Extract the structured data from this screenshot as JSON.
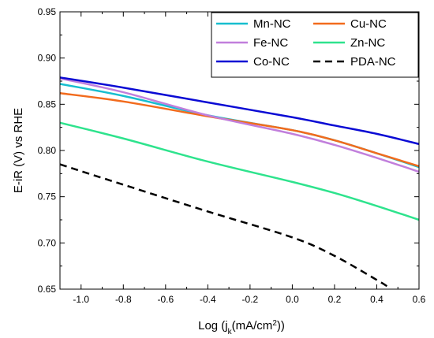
{
  "chart_data": {
    "type": "line",
    "xlabel": "Log (j",
    "xlabel_sub": "k",
    "xlabel_mid": "(mA/cm",
    "xlabel_sup": "2",
    "xlabel_end": "))",
    "ylabel": "E-iR (V) vs RHE",
    "xlim": [
      -1.1,
      0.6
    ],
    "ylim": [
      0.65,
      0.95
    ],
    "x_ticks": [
      -1.0,
      -0.8,
      -0.6,
      -0.4,
      -0.2,
      0.0,
      0.2,
      0.4,
      0.6
    ],
    "x_tick_labels": [
      "-1.0",
      "-0.8",
      "-0.6",
      "-0.4",
      "-0.2",
      "0.0",
      "0.2",
      "0.4",
      "0.6"
    ],
    "y_ticks": [
      0.65,
      0.7,
      0.75,
      0.8,
      0.85,
      0.9,
      0.95
    ],
    "y_tick_labels": [
      "0.65",
      "0.70",
      "0.75",
      "0.80",
      "0.85",
      "0.90",
      "0.95"
    ],
    "legend_position": "top-right",
    "legend_columns": 2,
    "series": [
      {
        "name": "Mn-NC",
        "color": "#17becf",
        "dash": "solid",
        "x": [
          -1.1,
          -0.8,
          -0.4,
          0.0,
          0.2,
          0.4,
          0.6
        ],
        "y": [
          0.872,
          0.859,
          0.838,
          0.822,
          0.811,
          0.797,
          0.782
        ]
      },
      {
        "name": "Cu-NC",
        "color": "#f26b1d",
        "dash": "solid",
        "x": [
          -1.1,
          -0.8,
          -0.4,
          0.0,
          0.2,
          0.4,
          0.6
        ],
        "y": [
          0.862,
          0.853,
          0.837,
          0.822,
          0.811,
          0.797,
          0.783
        ]
      },
      {
        "name": "Fe-NC",
        "color": "#c17fdc",
        "dash": "solid",
        "x": [
          -1.1,
          -0.8,
          -0.4,
          0.0,
          0.2,
          0.4,
          0.6
        ],
        "y": [
          0.878,
          0.863,
          0.838,
          0.818,
          0.806,
          0.792,
          0.777
        ]
      },
      {
        "name": "Zn-NC",
        "color": "#2ee38d",
        "dash": "solid",
        "x": [
          -1.1,
          -0.8,
          -0.4,
          0.0,
          0.2,
          0.4,
          0.6
        ],
        "y": [
          0.83,
          0.813,
          0.788,
          0.766,
          0.754,
          0.74,
          0.725
        ]
      },
      {
        "name": "Co-NC",
        "color": "#0a0ad4",
        "dash": "solid",
        "x": [
          -1.1,
          -0.8,
          -0.4,
          0.0,
          0.2,
          0.4,
          0.6
        ],
        "y": [
          0.879,
          0.868,
          0.852,
          0.836,
          0.827,
          0.818,
          0.807
        ]
      },
      {
        "name": "PDA-NC",
        "color": "#000000",
        "dash": "dashed",
        "x": [
          -1.1,
          -0.8,
          -0.4,
          0.0,
          0.2,
          0.4,
          0.45
        ],
        "y": [
          0.785,
          0.763,
          0.734,
          0.706,
          0.686,
          0.66,
          0.653
        ]
      }
    ]
  }
}
